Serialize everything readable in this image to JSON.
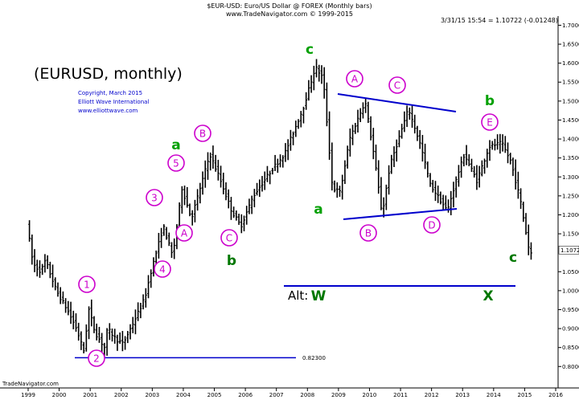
{
  "chart_data": {
    "type": "ohlc",
    "header": {
      "line1": "$EUR-USD:  Euro/US Dollar @ FOREX  (Monthly bars)",
      "line2": "www.TradeNavigator.com © 1999-2015",
      "timestamp": "3/31/15 15:54 = 1.10722 (-0.01248)"
    },
    "title": "(EURUSD, monthly)",
    "copyright": [
      "Copyright, March 2015",
      "Elliott Wave International",
      "www.elliottwave.com"
    ],
    "footer_brand": "TradeNavigator.com",
    "last_price_label": "1.10722",
    "low_line_label": "0.82300",
    "low_line_value": 0.823,
    "xlim": [
      1999,
      2016
    ],
    "ylim": [
      0.79,
      1.72
    ],
    "x_ticks": [
      "1999",
      "2000",
      "2001",
      "2002",
      "2003",
      "2004",
      "2005",
      "2006",
      "2007",
      "2008",
      "2009",
      "2010",
      "2011",
      "2012",
      "2013",
      "2014",
      "2015",
      "2016"
    ],
    "y_ticks": [
      {
        "v": 1.7,
        "t": "1.70000"
      },
      {
        "v": 1.65,
        "t": "1.65000"
      },
      {
        "v": 1.6,
        "t": "1.60000"
      },
      {
        "v": 1.55,
        "t": "1.55000"
      },
      {
        "v": 1.5,
        "t": "1.50000"
      },
      {
        "v": 1.45,
        "t": "1.45000"
      },
      {
        "v": 1.4,
        "t": "1.40000"
      },
      {
        "v": 1.35,
        "t": "1.35000"
      },
      {
        "v": 1.3,
        "t": "1.30000"
      },
      {
        "v": 1.25,
        "t": "1.25000"
      },
      {
        "v": 1.2,
        "t": "1.20000"
      },
      {
        "v": 1.15,
        "t": "1.15000"
      },
      {
        "v": 1.05,
        "t": "1.05000"
      },
      {
        "v": 1.0,
        "t": "1.00000"
      },
      {
        "v": 0.95,
        "t": "0.95000"
      },
      {
        "v": 0.9,
        "t": "0.90000"
      },
      {
        "v": 0.85,
        "t": "0.85000"
      },
      {
        "v": 0.8,
        "t": "0.80000"
      }
    ],
    "path_points": [
      [
        1999.0,
        1.18
      ],
      [
        1999.2,
        1.07
      ],
      [
        1999.45,
        1.05
      ],
      [
        1999.6,
        1.08
      ],
      [
        1999.95,
        1.0
      ],
      [
        2000.3,
        0.95
      ],
      [
        2000.6,
        0.9
      ],
      [
        2000.83,
        0.84
      ],
      [
        2001.0,
        0.95
      ],
      [
        2001.2,
        0.89
      ],
      [
        2001.5,
        0.85
      ],
      [
        2001.6,
        0.9
      ],
      [
        2001.9,
        0.87
      ],
      [
        2002.1,
        0.86
      ],
      [
        2002.4,
        0.91
      ],
      [
        2002.8,
        0.98
      ],
      [
        2003.0,
        1.05
      ],
      [
        2003.4,
        1.17
      ],
      [
        2003.7,
        1.09
      ],
      [
        2004.0,
        1.27
      ],
      [
        2004.3,
        1.19
      ],
      [
        2004.9,
        1.36
      ],
      [
        2005.2,
        1.3
      ],
      [
        2005.6,
        1.21
      ],
      [
        2005.9,
        1.17
      ],
      [
        2006.3,
        1.25
      ],
      [
        2006.9,
        1.32
      ],
      [
        2007.3,
        1.36
      ],
      [
        2007.9,
        1.48
      ],
      [
        2008.3,
        1.59
      ],
      [
        2008.55,
        1.56
      ],
      [
        2008.85,
        1.27
      ],
      [
        2009.1,
        1.26
      ],
      [
        2009.4,
        1.4
      ],
      [
        2009.9,
        1.5
      ],
      [
        2010.2,
        1.35
      ],
      [
        2010.45,
        1.2
      ],
      [
        2010.7,
        1.33
      ],
      [
        2011.3,
        1.48
      ],
      [
        2011.7,
        1.38
      ],
      [
        2012.0,
        1.28
      ],
      [
        2012.55,
        1.21
      ],
      [
        2012.9,
        1.31
      ],
      [
        2013.1,
        1.36
      ],
      [
        2013.5,
        1.29
      ],
      [
        2013.9,
        1.38
      ],
      [
        2014.3,
        1.39
      ],
      [
        2014.6,
        1.34
      ],
      [
        2014.9,
        1.24
      ],
      [
        2015.2,
        1.1
      ]
    ],
    "labels": {
      "c_top": "c",
      "a_left": "a",
      "b_left": "b",
      "a_mid": "a",
      "b_right": "b",
      "c_right": "c",
      "alt": "Alt:",
      "w": "W",
      "x": "X",
      "n1": "1",
      "n2": "2",
      "n3": "3",
      "n4": "4",
      "n5": "5",
      "cA1": "A",
      "cB1": "B",
      "cC1": "C",
      "cA2": "A",
      "cB2": "B",
      "cC2": "C",
      "cD2": "D",
      "cE2": "E"
    }
  },
  "colors": {
    "bars": "#000000",
    "trendline": "#0000cc",
    "green": "#00a000",
    "magenta": "#cc00cc",
    "altline": "#0000cc"
  }
}
